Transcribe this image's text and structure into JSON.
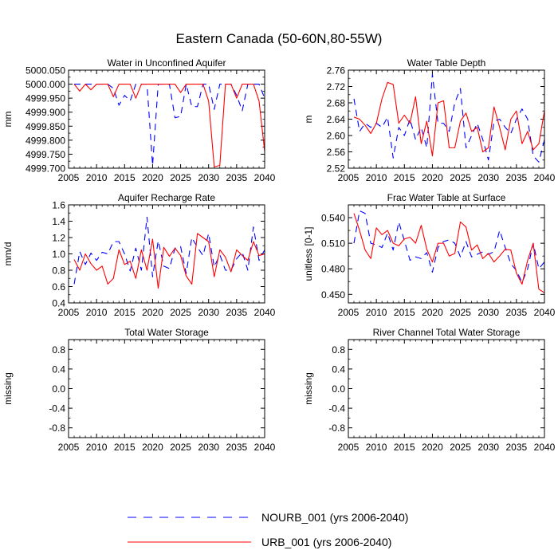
{
  "figure": {
    "title": "Eastern Canada (50-60N,80-55W)",
    "legend": [
      {
        "label": "NOURB_001 (yrs 2006-2040)",
        "color": "#0000ff",
        "dash": "dash"
      },
      {
        "label": "URB_001 (yrs 2006-2040)",
        "color": "#ff0000",
        "dash": "solid"
      }
    ],
    "colors": {
      "nourb": "#0000ff",
      "urb": "#ff0000"
    }
  },
  "chart_data": [
    {
      "type": "line",
      "title": "Water in Unconfined Aquifer",
      "ylabel": "mm",
      "xlim": [
        2005,
        2040
      ],
      "ylim": [
        4999.7,
        5000.05
      ],
      "xticks": [
        2005,
        2010,
        2015,
        2020,
        2025,
        2030,
        2035,
        2040
      ],
      "yticks": [
        4999.7,
        4999.75,
        4999.8,
        4999.85,
        4999.9,
        4999.95,
        5000.0,
        5000.05
      ],
      "ytick_labels": [
        "4999.700",
        "4999.750",
        "4999.800",
        "4999.850",
        "4999.900",
        "4999.950",
        "5000.000",
        "5000.050"
      ],
      "x": [
        2006,
        2007,
        2008,
        2009,
        2010,
        2011,
        2012,
        2013,
        2014,
        2015,
        2016,
        2017,
        2018,
        2019,
        2020,
        2021,
        2022,
        2023,
        2024,
        2025,
        2026,
        2027,
        2028,
        2029,
        2030,
        2031,
        2032,
        2033,
        2034,
        2035,
        2036,
        2037,
        2038,
        2039,
        2040
      ],
      "series": [
        {
          "name": "NOURB_001",
          "values": [
            5000.0,
            5000.0,
            5000.0,
            5000.0,
            5000.0,
            5000.0,
            5000.0,
            4999.985,
            4999.925,
            4999.96,
            4999.94,
            5000.0,
            5000.0,
            5000.0,
            4999.71,
            5000.0,
            5000.0,
            5000.0,
            4999.88,
            4999.885,
            5000.0,
            4999.92,
            4999.92,
            5000.0,
            5000.0,
            4999.91,
            5000.0,
            5000.0,
            5000.0,
            4999.96,
            4999.905,
            5000.0,
            5000.0,
            5000.0,
            4999.95
          ]
        },
        {
          "name": "URB_001",
          "values": [
            5000.0,
            4999.975,
            5000.0,
            4999.98,
            5000.0,
            5000.0,
            5000.0,
            4999.955,
            5000.0,
            5000.0,
            5000.0,
            4999.95,
            5000.0,
            5000.0,
            5000.0,
            5000.0,
            5000.0,
            5000.0,
            5000.0,
            4999.97,
            5000.0,
            5000.0,
            5000.0,
            5000.0,
            4999.94,
            4999.705,
            4999.71,
            5000.0,
            5000.0,
            4999.95,
            5000.0,
            5000.0,
            5000.0,
            4999.94,
            4999.76
          ]
        }
      ]
    },
    {
      "type": "line",
      "title": "Water Table Depth",
      "ylabel": "m",
      "xlim": [
        2005,
        2040
      ],
      "ylim": [
        2.52,
        2.76
      ],
      "xticks": [
        2005,
        2010,
        2015,
        2020,
        2025,
        2030,
        2035,
        2040
      ],
      "yticks": [
        2.52,
        2.56,
        2.6,
        2.64,
        2.68,
        2.72,
        2.76
      ],
      "ytick_labels": [
        "2.52",
        "2.56",
        "2.60",
        "2.64",
        "2.68",
        "2.72",
        "2.76"
      ],
      "x": [
        2006,
        2007,
        2008,
        2009,
        2010,
        2011,
        2012,
        2013,
        2014,
        2015,
        2016,
        2017,
        2018,
        2019,
        2020,
        2021,
        2022,
        2023,
        2024,
        2025,
        2026,
        2027,
        2028,
        2029,
        2030,
        2031,
        2032,
        2033,
        2034,
        2035,
        2036,
        2037,
        2038,
        2039,
        2040
      ],
      "series": [
        {
          "name": "NOURB_001",
          "values": [
            2.69,
            2.61,
            2.63,
            2.62,
            2.63,
            2.62,
            2.645,
            2.545,
            2.62,
            2.6,
            2.64,
            2.59,
            2.62,
            2.57,
            2.75,
            2.63,
            2.63,
            2.61,
            2.68,
            2.715,
            2.57,
            2.6,
            2.63,
            2.59,
            2.54,
            2.635,
            2.64,
            2.62,
            2.605,
            2.64,
            2.665,
            2.64,
            2.55,
            2.535,
            2.59
          ]
        },
        {
          "name": "URB_001",
          "values": [
            2.645,
            2.64,
            2.625,
            2.605,
            2.63,
            2.69,
            2.73,
            2.725,
            2.63,
            2.65,
            2.63,
            2.695,
            2.58,
            2.635,
            2.55,
            2.68,
            2.685,
            2.57,
            2.57,
            2.635,
            2.655,
            2.61,
            2.62,
            2.56,
            2.57,
            2.67,
            2.62,
            2.565,
            2.64,
            2.66,
            2.58,
            2.61,
            2.565,
            2.58,
            2.66
          ]
        }
      ]
    },
    {
      "type": "line",
      "title": "Aquifer Recharge Rate",
      "ylabel": "mm/d",
      "xlim": [
        2005,
        2040
      ],
      "ylim": [
        0.4,
        1.6
      ],
      "xticks": [
        2005,
        2010,
        2015,
        2020,
        2025,
        2030,
        2035,
        2040
      ],
      "yticks": [
        0.4,
        0.6,
        0.8,
        1.0,
        1.2,
        1.4,
        1.6
      ],
      "ytick_labels": [
        "0.4",
        "0.6",
        "0.8",
        "1.0",
        "1.2",
        "1.4",
        "1.6"
      ],
      "x": [
        2006,
        2007,
        2008,
        2009,
        2010,
        2011,
        2012,
        2013,
        2014,
        2015,
        2016,
        2017,
        2018,
        2019,
        2020,
        2021,
        2022,
        2023,
        2024,
        2025,
        2026,
        2027,
        2028,
        2029,
        2030,
        2031,
        2032,
        2033,
        2034,
        2035,
        2036,
        2037,
        2038,
        2039,
        2040
      ],
      "series": [
        {
          "name": "NOURB_001",
          "values": [
            0.63,
            1.03,
            0.87,
            1.01,
            0.92,
            1.02,
            1.0,
            1.15,
            1.15,
            1.0,
            0.79,
            1.07,
            0.8,
            1.45,
            0.72,
            1.16,
            0.85,
            0.82,
            1.07,
            1.09,
            0.76,
            1.2,
            1.08,
            0.98,
            1.25,
            0.84,
            0.99,
            0.8,
            0.8,
            0.94,
            1.02,
            0.8,
            1.33,
            0.92,
            1.05
          ]
        },
        {
          "name": "URB_001",
          "values": [
            0.93,
            0.8,
            1.0,
            0.88,
            0.8,
            0.85,
            0.63,
            0.7,
            1.05,
            0.87,
            0.91,
            0.7,
            1.05,
            0.8,
            1.18,
            0.58,
            1.08,
            0.97,
            1.07,
            0.98,
            0.73,
            0.63,
            1.25,
            1.2,
            1.15,
            0.72,
            1.05,
            0.96,
            0.78,
            1.05,
            0.98,
            0.92,
            1.15,
            0.98,
            1.0
          ]
        }
      ]
    },
    {
      "type": "line",
      "title": "Frac Water Table at Surface",
      "ylabel": "unitless [0-1]",
      "xlim": [
        2005,
        2040
      ],
      "ylim": [
        0.44,
        0.555
      ],
      "xticks": [
        2005,
        2010,
        2015,
        2020,
        2025,
        2030,
        2035,
        2040
      ],
      "yticks": [
        0.45,
        0.48,
        0.51,
        0.54
      ],
      "ytick_labels": [
        "0.450",
        "0.480",
        "0.510",
        "0.540"
      ],
      "x": [
        2006,
        2007,
        2008,
        2009,
        2010,
        2011,
        2012,
        2013,
        2014,
        2015,
        2016,
        2017,
        2018,
        2019,
        2020,
        2021,
        2022,
        2023,
        2024,
        2025,
        2026,
        2027,
        2028,
        2029,
        2030,
        2031,
        2032,
        2033,
        2034,
        2035,
        2036,
        2037,
        2038,
        2039,
        2040
      ],
      "series": [
        {
          "name": "NOURB_001",
          "values": [
            0.51,
            0.548,
            0.545,
            0.51,
            0.508,
            0.505,
            0.522,
            0.502,
            0.535,
            0.513,
            0.49,
            0.494,
            0.492,
            0.499,
            0.476,
            0.505,
            0.512,
            0.514,
            0.51,
            0.494,
            0.512,
            0.494,
            0.497,
            0.5,
            0.497,
            0.5,
            0.525,
            0.505,
            0.486,
            0.478,
            0.464,
            0.48,
            0.51,
            0.48,
            0.488
          ]
        },
        {
          "name": "URB_001",
          "values": [
            0.545,
            0.525,
            0.502,
            0.492,
            0.528,
            0.52,
            0.525,
            0.51,
            0.507,
            0.515,
            0.517,
            0.51,
            0.531,
            0.503,
            0.488,
            0.51,
            0.51,
            0.495,
            0.498,
            0.535,
            0.529,
            0.502,
            0.508,
            0.492,
            0.498,
            0.488,
            0.495,
            0.503,
            0.502,
            0.475,
            0.462,
            0.49,
            0.51,
            0.456,
            0.452
          ]
        }
      ]
    },
    {
      "type": "line",
      "title": "Total Water Storage",
      "ylabel": "missing",
      "xlim": [
        2005,
        2040
      ],
      "ylim": [
        -1,
        1
      ],
      "xticks": [
        2005,
        2010,
        2015,
        2020,
        2025,
        2030,
        2035,
        2040
      ],
      "yticks": [
        -0.8,
        -0.4,
        0.0,
        0.4,
        0.8
      ],
      "ytick_labels": [
        "-0.8",
        "-0.4",
        "0.0",
        "0.4",
        "0.8"
      ],
      "x": [],
      "series": []
    },
    {
      "type": "line",
      "title": "River Channel Total Water Storage",
      "ylabel": "missing",
      "xlim": [
        2005,
        2040
      ],
      "ylim": [
        -1,
        1
      ],
      "xticks": [
        2005,
        2010,
        2015,
        2020,
        2025,
        2030,
        2035,
        2040
      ],
      "yticks": [
        -0.8,
        -0.4,
        0.0,
        0.4,
        0.8
      ],
      "ytick_labels": [
        "-0.8",
        "-0.4",
        "0.0",
        "0.4",
        "0.8"
      ],
      "x": [],
      "series": []
    }
  ]
}
